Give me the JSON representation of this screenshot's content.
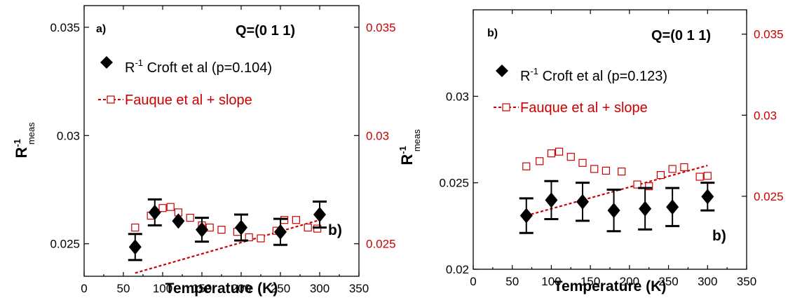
{
  "chart_data": [
    {
      "type": "scatter",
      "panel_label": "a)",
      "corner_label": "b)",
      "annotation": "Q=(0 1 1)",
      "xlabel": "Temperature (K)",
      "ylabel": "R",
      "ylabel_sup": "-1",
      "ylabel_sub": "meas",
      "xlim": [
        0,
        350
      ],
      "ylim": [
        0.0235,
        0.036
      ],
      "xticks": [
        "0",
        "50",
        "100",
        "150",
        "200",
        "250",
        "300",
        "350"
      ],
      "yticks": [
        "0.025",
        "0.03",
        "0.035"
      ],
      "y2lim": [
        0.0235,
        0.036
      ],
      "y2ticks": [
        "0.025",
        "0.03",
        "0.035"
      ],
      "legend": {
        "series1_prefix": "R",
        "series1_sup": "-1",
        "series1_text": " Croft et al (p=0.104)",
        "series2_text": "Fauque et al + slope"
      },
      "series": [
        {
          "name": "R-1 Croft et al (p=0.104)",
          "marker": "diamond",
          "color": "#000000",
          "x": [
            65,
            90,
            120,
            150,
            200,
            250,
            300
          ],
          "y": [
            0.02485,
            0.02645,
            0.02605,
            0.02565,
            0.02575,
            0.02555,
            0.02635
          ],
          "yerr": [
            0.0006,
            0.0006,
            0.0,
            0.00055,
            0.0006,
            0.0006,
            0.0006
          ]
        },
        {
          "name": "Fauque et al + slope",
          "marker": "open-square",
          "color": "#cc0000",
          "x": [
            65,
            85,
            100,
            110,
            120,
            135,
            150,
            160,
            175,
            195,
            210,
            225,
            245,
            255,
            270,
            285,
            297
          ],
          "y": [
            0.02575,
            0.0263,
            0.02665,
            0.0267,
            0.02645,
            0.0262,
            0.02585,
            0.02575,
            0.02565,
            0.02555,
            0.0253,
            0.02525,
            0.0256,
            0.0261,
            0.0261,
            0.02575,
            0.0257
          ]
        },
        {
          "name": "slope",
          "style": "dashed-line",
          "color": "#cc0000",
          "x": [
            65,
            300
          ],
          "y": [
            0.02365,
            0.0261
          ]
        }
      ]
    },
    {
      "type": "scatter",
      "panel_label": "b)",
      "corner_label": "b)",
      "annotation": "Q=(0 1 1)",
      "xlabel": "Temperature (K)",
      "ylabel": "R",
      "ylabel_sup": "-1",
      "ylabel_sub": "meas",
      "xlim": [
        0,
        350
      ],
      "ylim": [
        0.02,
        0.035
      ],
      "xticks": [
        "0",
        "50",
        "100",
        "150",
        "200",
        "250",
        "300",
        "350"
      ],
      "yticks": [
        "0.02",
        "0.025",
        "0.03"
      ],
      "y2lim": [
        0.0205,
        0.0365
      ],
      "y2ticks": [
        "0.025",
        "0.03",
        "0.035"
      ],
      "legend": {
        "series1_prefix": "R",
        "series1_sup": "-1",
        "series1_text": " Croft et al (p=0.123)",
        "series2_text": "Fauque et al + slope"
      },
      "series": [
        {
          "name": "R-1 Croft et al (p=0.123)",
          "marker": "diamond",
          "color": "#000000",
          "x": [
            68,
            100,
            140,
            180,
            220,
            255,
            300
          ],
          "y": [
            0.0231,
            0.024,
            0.0239,
            0.0234,
            0.0235,
            0.0236,
            0.0242
          ],
          "yerr": [
            0.001,
            0.0011,
            0.0011,
            0.0012,
            0.0012,
            0.0011,
            0.0008
          ]
        },
        {
          "name": "Fauque et al + slope",
          "marker": "open-square",
          "color": "#cc0000",
          "x": [
            68,
            85,
            100,
            110,
            125,
            140,
            155,
            170,
            190,
            210,
            225,
            240,
            255,
            270,
            290,
            300
          ],
          "y": [
            0.02595,
            0.02625,
            0.0267,
            0.0268,
            0.0265,
            0.02615,
            0.0258,
            0.0257,
            0.02565,
            0.0249,
            0.0248,
            0.02545,
            0.0258,
            0.0259,
            0.02535,
            0.0254
          ]
        },
        {
          "name": "slope",
          "style": "dashed-line",
          "color": "#cc0000",
          "x": [
            68,
            300
          ],
          "y": [
            0.0231,
            0.026
          ]
        }
      ]
    }
  ]
}
